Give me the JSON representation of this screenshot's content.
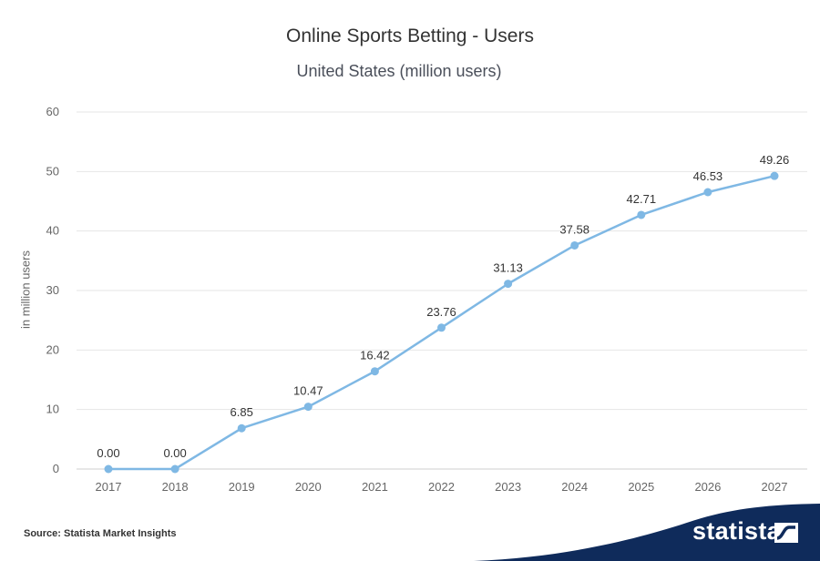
{
  "chart_data": {
    "type": "line",
    "title": "Online Sports Betting - Users",
    "subtitle": "United States (million users)",
    "ylabel": "in million users",
    "xlabel": "",
    "categories": [
      "2017",
      "2018",
      "2019",
      "2020",
      "2021",
      "2022",
      "2023",
      "2024",
      "2025",
      "2026",
      "2027"
    ],
    "series": [
      {
        "values": [
          0.0,
          0.0,
          6.85,
          10.47,
          16.42,
          23.76,
          31.13,
          37.58,
          42.71,
          46.53,
          49.26
        ],
        "labels": [
          "0.00",
          "0.00",
          "6.85",
          "10.47",
          "16.42",
          "23.76",
          "31.13",
          "37.58",
          "42.71",
          "46.53",
          "49.26"
        ],
        "color": "#7fb8e4"
      }
    ],
    "ylim": [
      0,
      60
    ],
    "yticks": [
      0,
      10,
      20,
      30,
      40,
      50,
      60
    ],
    "grid": true
  },
  "footer": {
    "source": "Source: Statista Market Insights",
    "brand": "statista",
    "brand_color": "#0f2b5b"
  }
}
